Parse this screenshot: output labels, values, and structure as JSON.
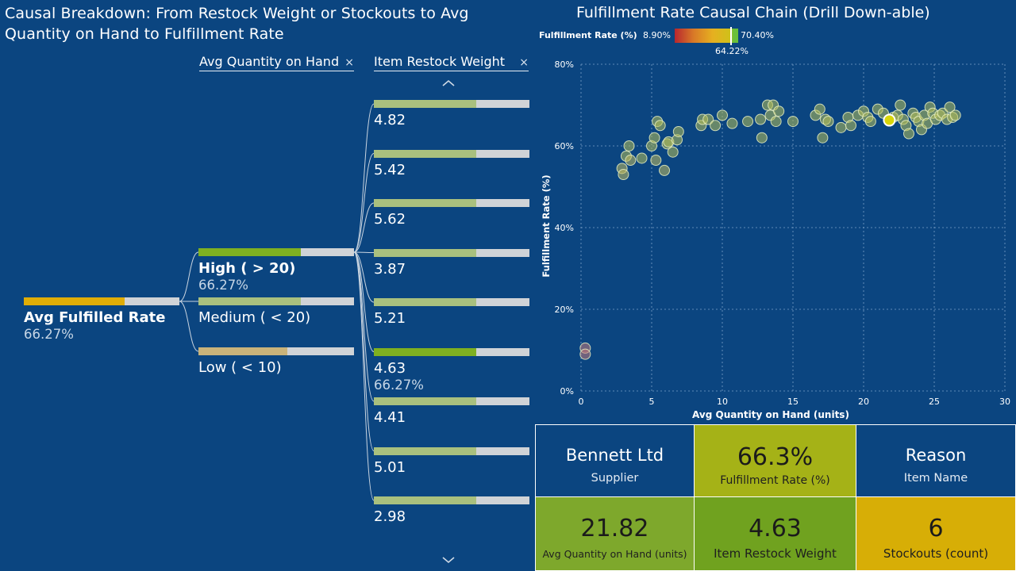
{
  "left_title": "Causal Breakdown: From Restock Weight or Stockouts to Avg Quantity on Hand to Fulfillment Rate",
  "right_title": "Fulfillment Rate Causal Chain (Drill Down-able)",
  "tree": {
    "headers": [
      {
        "label": "Avg Quantity on Hand",
        "close": "×"
      },
      {
        "label": "Item Restock Weight",
        "close": "×"
      }
    ],
    "root": {
      "label": "Avg Fulfilled Rate",
      "value": "66.27%",
      "fill": 0.65,
      "color": "#e0ad07"
    },
    "level1": [
      {
        "label": "High ( > 20)",
        "value": "66.27%",
        "fill": 0.66,
        "color": "#7fb021",
        "selected": true
      },
      {
        "label": "Medium ( < 20)",
        "value": "",
        "fill": 0.66,
        "color": "#a9c07e",
        "selected": false
      },
      {
        "label": "Low ( < 10)",
        "value": "",
        "fill": 0.57,
        "color": "#c9b37a",
        "selected": false
      }
    ],
    "level2": [
      {
        "label": "4.82",
        "value": "",
        "fill": 0.66,
        "color": "#a9c07e",
        "selected": false
      },
      {
        "label": "5.42",
        "value": "",
        "fill": 0.66,
        "color": "#a9c07e",
        "selected": false
      },
      {
        "label": "5.62",
        "value": "",
        "fill": 0.66,
        "color": "#a9c07e",
        "selected": false
      },
      {
        "label": "3.87",
        "value": "",
        "fill": 0.66,
        "color": "#a9c07e",
        "selected": false
      },
      {
        "label": "5.21",
        "value": "",
        "fill": 0.66,
        "color": "#a9c07e",
        "selected": false
      },
      {
        "label": "4.63",
        "value": "66.27%",
        "fill": 0.66,
        "color": "#7fb021",
        "selected": true
      },
      {
        "label": "4.41",
        "value": "",
        "fill": 0.66,
        "color": "#a9c07e",
        "selected": false
      },
      {
        "label": "5.01",
        "value": "",
        "fill": 0.66,
        "color": "#a9c07e",
        "selected": false
      },
      {
        "label": "2.98",
        "value": "",
        "fill": 0.66,
        "color": "#a9c07e",
        "selected": false
      }
    ]
  },
  "legend": {
    "title": "Fulfillment Rate (%)",
    "min": "8.90%",
    "max": "70.40%",
    "current": "64.22%"
  },
  "chart_data": {
    "type": "scatter",
    "xlabel": "Avg Quantity on Hand (units)",
    "ylabel": "Fulfillment Rate (%)",
    "xlim": [
      0,
      30
    ],
    "ylim": [
      0,
      80
    ],
    "xticks": [
      "0",
      "5",
      "10",
      "15",
      "20",
      "25",
      "30"
    ],
    "yticks": [
      "0%",
      "20%",
      "40%",
      "60%",
      "80%"
    ],
    "grid": true,
    "highlight": {
      "x": 21.82,
      "y": 66.3
    },
    "points": [
      [
        0.3,
        10.5
      ],
      [
        0.3,
        9.0
      ],
      [
        2.9,
        54.5
      ],
      [
        3.0,
        53.0
      ],
      [
        3.2,
        57.5
      ],
      [
        3.4,
        60.0
      ],
      [
        3.5,
        56.5
      ],
      [
        4.3,
        57.0
      ],
      [
        5.0,
        60.0
      ],
      [
        5.2,
        62.0
      ],
      [
        5.3,
        56.5
      ],
      [
        5.4,
        66.0
      ],
      [
        5.6,
        65.0
      ],
      [
        5.9,
        54.0
      ],
      [
        6.1,
        60.5
      ],
      [
        6.2,
        61.0
      ],
      [
        6.5,
        58.5
      ],
      [
        6.8,
        61.5
      ],
      [
        6.9,
        63.5
      ],
      [
        8.5,
        65.0
      ],
      [
        8.6,
        66.5
      ],
      [
        9.0,
        66.5
      ],
      [
        9.5,
        65.0
      ],
      [
        10.0,
        67.5
      ],
      [
        10.7,
        65.5
      ],
      [
        11.8,
        66.0
      ],
      [
        12.7,
        66.5
      ],
      [
        12.8,
        62.0
      ],
      [
        13.2,
        70.0
      ],
      [
        13.4,
        67.5
      ],
      [
        13.6,
        70.0
      ],
      [
        13.8,
        66.0
      ],
      [
        14.0,
        68.5
      ],
      [
        15.0,
        66.0
      ],
      [
        16.6,
        67.5
      ],
      [
        16.9,
        69.0
      ],
      [
        17.1,
        62.0
      ],
      [
        17.3,
        66.5
      ],
      [
        17.5,
        66.0
      ],
      [
        18.4,
        64.5
      ],
      [
        18.9,
        67.0
      ],
      [
        19.1,
        65.0
      ],
      [
        19.6,
        67.5
      ],
      [
        20.0,
        68.5
      ],
      [
        20.3,
        67.0
      ],
      [
        20.5,
        66.0
      ],
      [
        21.0,
        69.0
      ],
      [
        21.4,
        68.0
      ],
      [
        22.1,
        67.0
      ],
      [
        22.4,
        67.5
      ],
      [
        22.6,
        70.0
      ],
      [
        22.8,
        66.5
      ],
      [
        23.0,
        65.0
      ],
      [
        23.2,
        63.0
      ],
      [
        23.5,
        68.0
      ],
      [
        23.7,
        67.0
      ],
      [
        23.9,
        66.0
      ],
      [
        24.1,
        64.0
      ],
      [
        24.3,
        67.5
      ],
      [
        24.5,
        65.5
      ],
      [
        24.7,
        69.5
      ],
      [
        24.9,
        68.0
      ],
      [
        25.1,
        66.5
      ],
      [
        25.4,
        67.5
      ],
      [
        25.6,
        68.0
      ],
      [
        25.9,
        66.5
      ],
      [
        26.1,
        69.5
      ],
      [
        26.3,
        67.0
      ],
      [
        26.5,
        67.5
      ]
    ]
  },
  "cards": [
    {
      "big": "Bennett Ltd",
      "small": "Supplier"
    },
    {
      "big": "66.3%",
      "small": "Fulfillment Rate (%)"
    },
    {
      "big": "Reason",
      "small": "Item Name"
    },
    {
      "big": "21.82",
      "small": "Avg Quantity on Hand (units)"
    },
    {
      "big": "4.63",
      "small": "Item Restock Weight"
    },
    {
      "big": "6",
      "small": "Stockouts (count)"
    }
  ]
}
